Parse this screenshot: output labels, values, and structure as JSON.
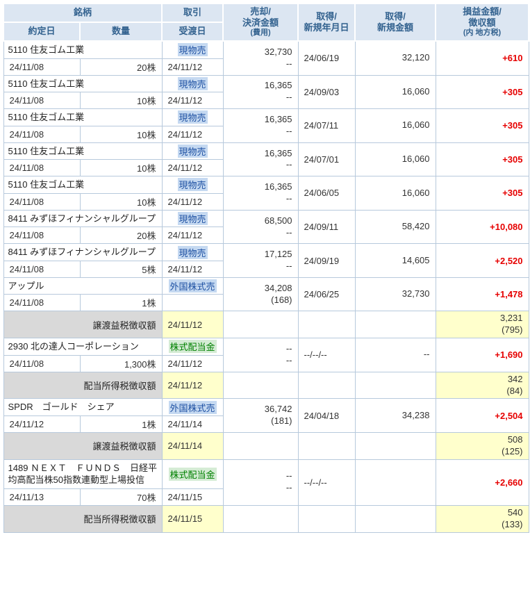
{
  "colors": {
    "header_bg": "#dce6f2",
    "header_text": "#33628f",
    "grid_border": "#b7c9dc",
    "sell_text": "#1d50a2",
    "sell_bg": "#c5d9f1",
    "dividend_text": "#008000",
    "dividend_bg": "#d5ecd5",
    "profit_text": "#e60000",
    "summary_label_bg": "#d9d9d9",
    "summary_value_bg": "#ffffcc"
  },
  "header": {
    "meigara": "銘柄",
    "yakujou_date": "約定日",
    "quantity": "数量",
    "torihiki": "取引",
    "ukewatashi_date": "受渡日",
    "sale_lines": [
      "売却/",
      "決済金額",
      "(費用)"
    ],
    "acq_date_lines": [
      "取得/",
      "新規年月日"
    ],
    "acq_amount_lines": [
      "取得/",
      "新規金額"
    ],
    "pl_lines": [
      "損益金額/",
      "徴収額",
      "(内 地方税)"
    ]
  },
  "rows": [
    {
      "kind": "trade",
      "name": "5110 住友ゴム工業",
      "contract_date": "24/11/08",
      "quantity": "20株",
      "type": "現物売",
      "type_style": "sell",
      "delivery_date": "24/11/12",
      "sale_amount": "32,730",
      "sale_fee": "--",
      "acq_date": "24/06/19",
      "acq_amount": "32,120",
      "pl": "+610"
    },
    {
      "kind": "trade",
      "name": "5110 住友ゴム工業",
      "contract_date": "24/11/08",
      "quantity": "10株",
      "type": "現物売",
      "type_style": "sell",
      "delivery_date": "24/11/12",
      "sale_amount": "16,365",
      "sale_fee": "--",
      "acq_date": "24/09/03",
      "acq_amount": "16,060",
      "pl": "+305"
    },
    {
      "kind": "trade",
      "name": "5110 住友ゴム工業",
      "contract_date": "24/11/08",
      "quantity": "10株",
      "type": "現物売",
      "type_style": "sell",
      "delivery_date": "24/11/12",
      "sale_amount": "16,365",
      "sale_fee": "--",
      "acq_date": "24/07/11",
      "acq_amount": "16,060",
      "pl": "+305"
    },
    {
      "kind": "trade",
      "name": "5110 住友ゴム工業",
      "contract_date": "24/11/08",
      "quantity": "10株",
      "type": "現物売",
      "type_style": "sell",
      "delivery_date": "24/11/12",
      "sale_amount": "16,365",
      "sale_fee": "--",
      "acq_date": "24/07/01",
      "acq_amount": "16,060",
      "pl": "+305"
    },
    {
      "kind": "trade",
      "name": "5110 住友ゴム工業",
      "contract_date": "24/11/08",
      "quantity": "10株",
      "type": "現物売",
      "type_style": "sell",
      "delivery_date": "24/11/12",
      "sale_amount": "16,365",
      "sale_fee": "--",
      "acq_date": "24/06/05",
      "acq_amount": "16,060",
      "pl": "+305"
    },
    {
      "kind": "trade",
      "name": "8411 みずほフィナンシャルグループ",
      "contract_date": "24/11/08",
      "quantity": "20株",
      "type": "現物売",
      "type_style": "sell",
      "delivery_date": "24/11/12",
      "sale_amount": "68,500",
      "sale_fee": "--",
      "acq_date": "24/09/11",
      "acq_amount": "58,420",
      "pl": "+10,080"
    },
    {
      "kind": "trade",
      "name": "8411 みずほフィナンシャルグループ",
      "contract_date": "24/11/08",
      "quantity": "5株",
      "type": "現物売",
      "type_style": "sell",
      "delivery_date": "24/11/12",
      "sale_amount": "17,125",
      "sale_fee": "--",
      "acq_date": "24/09/19",
      "acq_amount": "14,605",
      "pl": "+2,520"
    },
    {
      "kind": "trade",
      "name": "アップル",
      "contract_date": "24/11/08",
      "quantity": "1株",
      "type": "外国株式売",
      "type_style": "sell",
      "delivery_date": "",
      "sale_amount": "34,208",
      "sale_fee": "(168)",
      "acq_date": "24/06/25",
      "acq_amount": "32,730",
      "pl": "+1,478"
    },
    {
      "kind": "summary",
      "label": "譲渡益税徴収額",
      "delivery_date": "24/11/12",
      "amount": "3,231",
      "local_tax": "(795)"
    },
    {
      "kind": "trade",
      "name": "2930 北の達人コーポレーション",
      "contract_date": "24/11/08",
      "quantity": "1,300株",
      "type": "株式配当金",
      "type_style": "dividend",
      "delivery_date": "24/11/12",
      "sale_amount": "--",
      "sale_fee": "--",
      "acq_date": "--/--/--",
      "acq_amount": "--",
      "pl": "+1,690"
    },
    {
      "kind": "summary",
      "label": "配当所得税徴収額",
      "delivery_date": "24/11/12",
      "amount": "342",
      "local_tax": "(84)"
    },
    {
      "kind": "trade",
      "name": "SPDR　ゴールド　シェア",
      "contract_date": "24/11/12",
      "quantity": "1株",
      "type": "外国株式売",
      "type_style": "sell",
      "delivery_date": "24/11/14",
      "sale_amount": "36,742",
      "sale_fee": "(181)",
      "acq_date": "24/04/18",
      "acq_amount": "34,238",
      "pl": "+2,504"
    },
    {
      "kind": "summary",
      "label": "譲渡益税徴収額",
      "delivery_date": "24/11/14",
      "amount": "508",
      "local_tax": "(125)"
    },
    {
      "kind": "trade",
      "name": "1489 ＮＥＸＴ　ＦＵＮＤＳ　日経平均高配当株50指数連動型上場投信",
      "contract_date": "24/11/13",
      "quantity": "70株",
      "type": "株式配当金",
      "type_style": "dividend",
      "delivery_date": "24/11/15",
      "sale_amount": "--",
      "sale_fee": "--",
      "acq_date": "--/--/--",
      "acq_amount": "",
      "pl": "+2,660"
    },
    {
      "kind": "summary",
      "label": "配当所得税徴収額",
      "delivery_date": "24/11/15",
      "amount": "540",
      "local_tax": "(133)"
    }
  ]
}
